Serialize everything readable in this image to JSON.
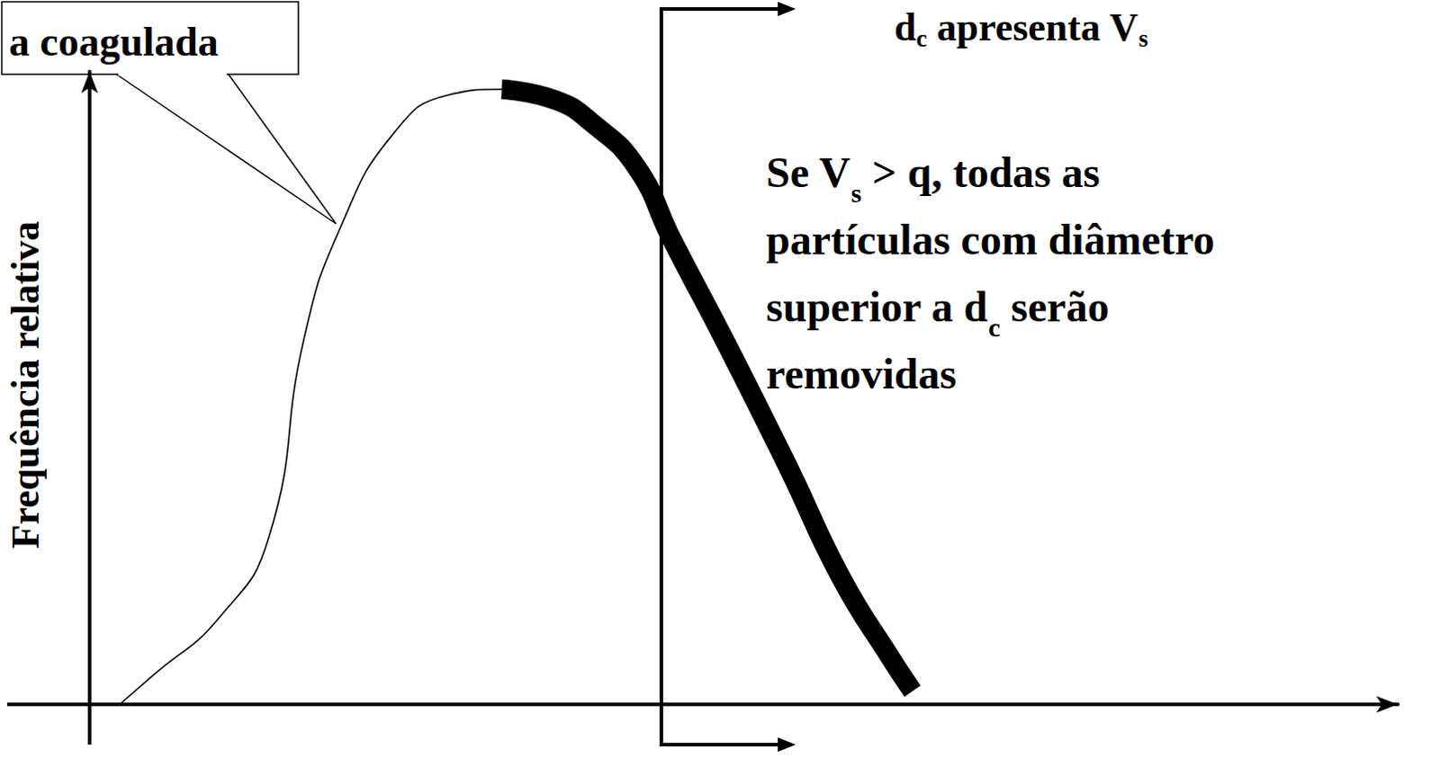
{
  "chart_data": {
    "type": "line",
    "color": "#000000",
    "x": [
      2.3,
      4.8,
      9.9,
      13.7,
      16.4,
      19.2,
      23.3,
      27.4,
      31.5,
      35.6,
      38.4,
      41.8,
      44.5,
      48.6,
      53.4,
      57.5,
      61.3,
      62.9
    ],
    "series": [
      {
        "values": [
          0,
          4.5,
          13.7,
          26.4,
          57.9,
          75.5,
          90.4,
          96.3,
          97.2,
          95.5,
          91.9,
          84.9,
          73.5,
          57.3,
          37.5,
          19.8,
          7.1,
          2.1
        ],
        "line_style": "thin"
      },
      {
        "values": [
          null,
          null,
          null,
          null,
          null,
          null,
          null,
          null,
          97.2,
          95.5,
          91.9,
          84.9,
          73.5,
          57.3,
          37.5,
          19.8,
          7.1,
          2.1
        ],
        "line_style": "thick"
      }
    ],
    "xlim": [
      0,
      100
    ],
    "ylim": [
      0,
      100
    ],
    "tick_labels": false,
    "grid": false,
    "y_label": "Frequência relativa",
    "dc": 43.7,
    "callout": "a coagulada",
    "dc_label": [
      {
        "text": "d"
      },
      {
        "sub": "c"
      },
      {
        "text": " apresenta V"
      },
      {
        "sub": "s"
      }
    ],
    "rule": [
      [
        {
          "text": "Se V"
        },
        {
          "sub": "s"
        },
        {
          "text": " > q, todas as"
        }
      ],
      [
        {
          "text": "partículas com diâmetro"
        }
      ],
      [
        {
          "text": "superior a d"
        },
        {
          "sub": "c"
        },
        {
          "text": " serão"
        }
      ],
      [
        {
          "text": "removidas"
        }
      ]
    ]
  }
}
